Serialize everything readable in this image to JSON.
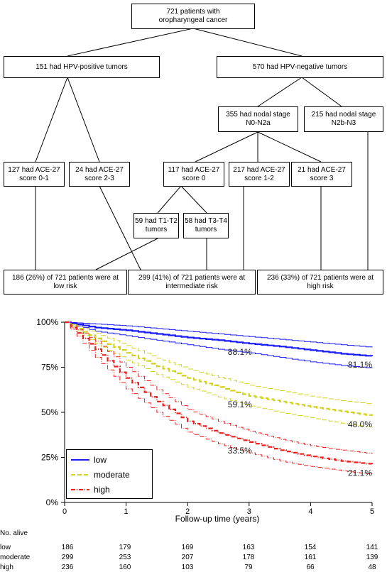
{
  "flowchart": {
    "root": "721 patients with\noropharyngeal cancer",
    "hpv_pos": "151 had HPV-positive tumors",
    "hpv_neg": "570 had HPV-negative tumors",
    "nodal_low": "355 had nodal stage\nN0-N2a",
    "nodal_high": "215 had nodal stage\nN2b-N3",
    "pos_ace01": "127 had ACE-27\nscore 0-1",
    "pos_ace23": "24 had ACE-27\nscore 2-3",
    "neg_ace0": "117 had ACE-27\nscore 0",
    "neg_ace12": "217 had ACE-27\nscore 1-2",
    "neg_ace3": "21 had ACE-27\nscore 3",
    "t12": "59 had T1-T2\ntumors",
    "t34": "58 had T3-T4\ntumors",
    "risk_low": "186 (26%) of 721 patients were at\nlow risk",
    "risk_int": "299 (41%) of 721 patients were at\nintermediate risk",
    "risk_high": "236 (33%) of 721 patients were at\nhigh risk"
  },
  "chart_data": {
    "type": "line",
    "xlabel": "Follow-up time (years)",
    "ylabel": "",
    "xlim": [
      0,
      5
    ],
    "ylim": [
      0,
      100
    ],
    "x_ticks": [
      "0",
      "1",
      "2",
      "3",
      "4",
      "5"
    ],
    "y_ticks": [
      "0%",
      "25%",
      "50%",
      "75%",
      "100%"
    ],
    "legend_position": "bottom-left",
    "series": [
      {
        "name": "low",
        "color": "#1a1aff",
        "x": [
          0,
          0.5,
          1,
          1.5,
          2,
          2.5,
          3,
          3.5,
          4,
          4.5,
          5
        ],
        "values": [
          100,
          97,
          95.5,
          93.5,
          91.5,
          90,
          88.1,
          86.5,
          84.5,
          82.5,
          81.1
        ],
        "ci_lower": [
          100,
          95,
          92.5,
          90,
          87.5,
          85,
          83,
          80.5,
          78,
          76,
          74.5
        ],
        "ci_upper": [
          100,
          99,
          98,
          96.5,
          95,
          93.5,
          92,
          90.5,
          89,
          87.5,
          86
        ]
      },
      {
        "name": "moderate",
        "color": "#d2d21e",
        "x": [
          0,
          0.5,
          1,
          1.5,
          2,
          2.5,
          3,
          3.5,
          4,
          4.5,
          5
        ],
        "values": [
          100,
          91,
          83,
          75.5,
          69,
          64,
          59.1,
          56,
          53,
          50.5,
          48
        ],
        "ci_lower": [
          100,
          88,
          79,
          71,
          64,
          58.5,
          53.5,
          50,
          47,
          44,
          41.5
        ],
        "ci_upper": [
          100,
          94,
          87,
          80,
          74,
          69.5,
          65,
          62,
          59,
          56.5,
          54.5
        ]
      },
      {
        "name": "high",
        "color": "#ee1c1c",
        "x": [
          0,
          0.5,
          1,
          1.5,
          2,
          2.5,
          3,
          3.5,
          4,
          4.5,
          5
        ],
        "values": [
          100,
          85,
          69,
          56,
          45,
          38.5,
          33.5,
          29,
          25.5,
          23,
          21.1
        ],
        "ci_lower": [
          100,
          80.5,
          63,
          50,
          39,
          32.5,
          27.5,
          23,
          20,
          17.5,
          15.5
        ],
        "ci_upper": [
          100,
          89.5,
          75,
          62.5,
          51.5,
          45,
          39.5,
          35,
          31.5,
          29,
          27
        ]
      }
    ],
    "annotations": [
      {
        "x": 3,
        "y": 88.1,
        "text": "88.1%"
      },
      {
        "x": 5,
        "y": 81.1,
        "text": "81.1%"
      },
      {
        "x": 3,
        "y": 59.1,
        "text": "59.1%"
      },
      {
        "x": 5,
        "y": 48.0,
        "text": "48.0%"
      },
      {
        "x": 3,
        "y": 33.5,
        "text": "33.5%"
      },
      {
        "x": 5,
        "y": 21.1,
        "text": "21.1%"
      }
    ]
  },
  "risk_table": {
    "title": "No. alive",
    "rows": [
      {
        "label": "low",
        "values": [
          "186",
          "179",
          "169",
          "163",
          "154",
          "141"
        ]
      },
      {
        "label": "moderate",
        "values": [
          "299",
          "253",
          "207",
          "178",
          "161",
          "139"
        ]
      },
      {
        "label": "high",
        "values": [
          "236",
          "160",
          "103",
          "79",
          "66",
          "48"
        ]
      }
    ]
  }
}
